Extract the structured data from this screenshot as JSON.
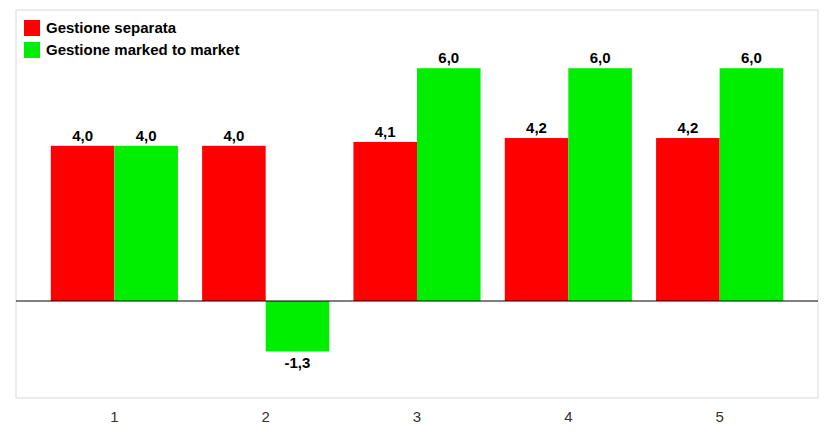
{
  "chart_data": {
    "type": "bar",
    "categories": [
      "1",
      "2",
      "3",
      "4",
      "5"
    ],
    "series": [
      {
        "name": "Gestione separata",
        "color": "#ff0000",
        "values": [
          4.0,
          4.0,
          4.1,
          4.2,
          4.2
        ],
        "value_labels": [
          "4,0",
          "4,0",
          "4,1",
          "4,2",
          "4,2"
        ]
      },
      {
        "name": "Gestione marked to market",
        "color": "#00ee00",
        "values": [
          4.0,
          -1.3,
          6.0,
          6.0,
          6.0
        ],
        "value_labels": [
          "4,0",
          "-1,3",
          "6,0",
          "6,0",
          "6,0"
        ]
      }
    ],
    "ylim": [
      -2.5,
      7.5
    ],
    "grid": false,
    "legend": "upper left",
    "data_labels": true,
    "tick_labels": "x"
  }
}
